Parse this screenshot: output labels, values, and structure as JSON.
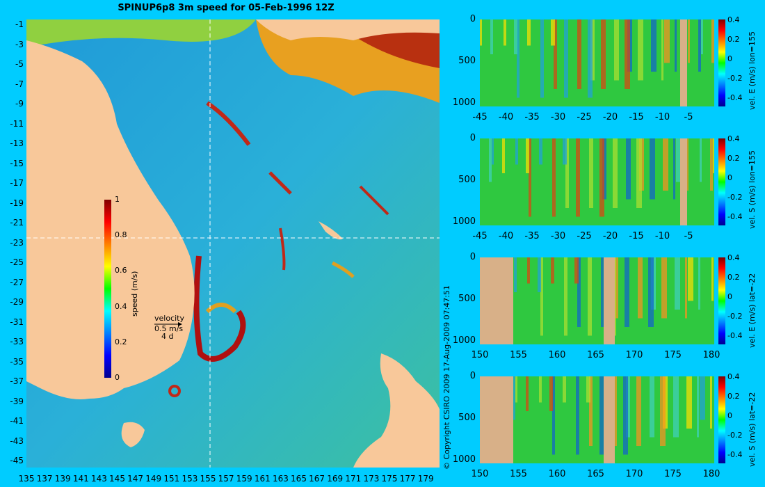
{
  "map": {
    "title": "SPINUP6p8 3m speed for 05-Feb-1996 12Z",
    "lat_labels": [
      "-1",
      "-3",
      "-5",
      "-7",
      "-9",
      "-11",
      "-13",
      "-15",
      "-17",
      "-19",
      "-21",
      "-23",
      "-25",
      "-27",
      "-29",
      "-31",
      "-33",
      "-35",
      "-37",
      "-39",
      "-41",
      "-43",
      "-45"
    ],
    "lon_labels": [
      "135",
      "137",
      "139",
      "141",
      "143",
      "145",
      "147",
      "149",
      "151",
      "153",
      "155",
      "157",
      "159",
      "161",
      "163",
      "165",
      "167",
      "169",
      "171",
      "173",
      "175",
      "177",
      "179"
    ],
    "colorbar": {
      "label": "speed (m/s)",
      "ticks": [
        "1",
        "0.8",
        "0.6",
        "0.4",
        "0.2",
        "0"
      ]
    },
    "velocity_legend": {
      "title": "velocity",
      "speed": "0.5 m/s",
      "time": "4 d"
    },
    "land_color": "#f8c89a"
  },
  "copyright": "© Copyright CSIRO 2009   17-Aug-2009 07:47:51",
  "panels": [
    {
      "id": "p1",
      "label": "vel. E (m/s) lon=155",
      "x_ticks": [
        "-45",
        "-40",
        "-35",
        "-30",
        "-25",
        "-20",
        "-15",
        "-10",
        "-5"
      ],
      "y_ticks": [
        "0",
        "500",
        "1000"
      ],
      "cb_ticks": [
        "0.4",
        "0.2",
        "0",
        "-0.2",
        "-0.4"
      ]
    },
    {
      "id": "p2",
      "label": "vel. S (m/s) lon=155",
      "x_ticks": [
        "-45",
        "-40",
        "-35",
        "-30",
        "-25",
        "-20",
        "-15",
        "-10",
        "-5"
      ],
      "y_ticks": [
        "0",
        "500",
        "1000"
      ],
      "cb_ticks": [
        "0.4",
        "0.2",
        "0",
        "-0.2",
        "-0.4"
      ]
    },
    {
      "id": "p3",
      "label": "vel. E (m/s) lat=-22",
      "x_ticks": [
        "150",
        "155",
        "160",
        "165",
        "170",
        "175",
        "180"
      ],
      "y_ticks": [
        "0",
        "500",
        "1000"
      ],
      "cb_ticks": [
        "0.4",
        "0.2",
        "0",
        "-0.2",
        "-0.4"
      ]
    },
    {
      "id": "p4",
      "label": "vel. S (m/s) lat=-22",
      "x_ticks": [
        "150",
        "155",
        "160",
        "165",
        "170",
        "175",
        "180"
      ],
      "y_ticks": [
        "0",
        "500",
        "1000"
      ],
      "cb_ticks": [
        "0.4",
        "0.2",
        "0",
        "-0.2",
        "-0.4"
      ]
    }
  ]
}
